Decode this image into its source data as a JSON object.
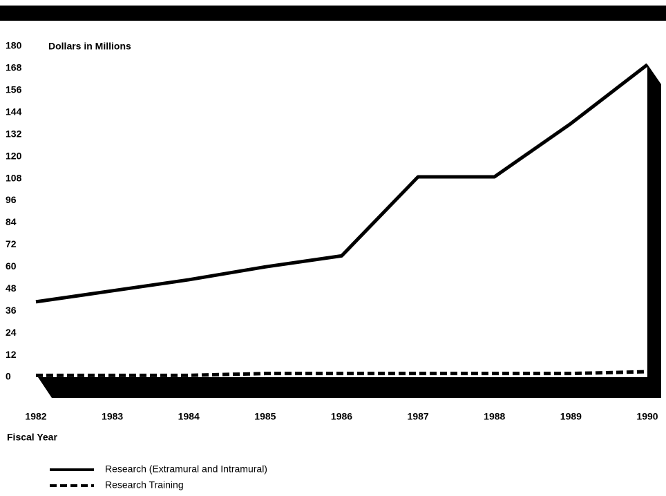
{
  "chart_data": {
    "type": "line",
    "y_label": "Dollars in Millions",
    "x_label": "Fiscal Year",
    "x": [
      1982,
      1983,
      1984,
      1985,
      1986,
      1987,
      1988,
      1989,
      1990
    ],
    "series": [
      {
        "name": "Research (Extramural and Intramural)",
        "color": "#000000",
        "dash": false,
        "values": [
          41,
          47,
          53,
          60,
          66,
          109,
          109,
          138,
          170
        ]
      },
      {
        "name": "Research Training",
        "color": "#000000",
        "dash": true,
        "values": [
          1,
          1,
          1,
          2,
          2,
          2,
          2,
          2,
          3
        ]
      }
    ],
    "xlim": [
      1982,
      1990
    ],
    "xticks": [
      1982,
      1983,
      1984,
      1985,
      1986,
      1987,
      1988,
      1989,
      1990
    ],
    "ylim": [
      0,
      180
    ],
    "yticks": [
      0,
      12,
      24,
      36,
      48,
      60,
      72,
      84,
      96,
      108,
      120,
      132,
      144,
      156,
      168,
      180
    ],
    "grid": false
  }
}
